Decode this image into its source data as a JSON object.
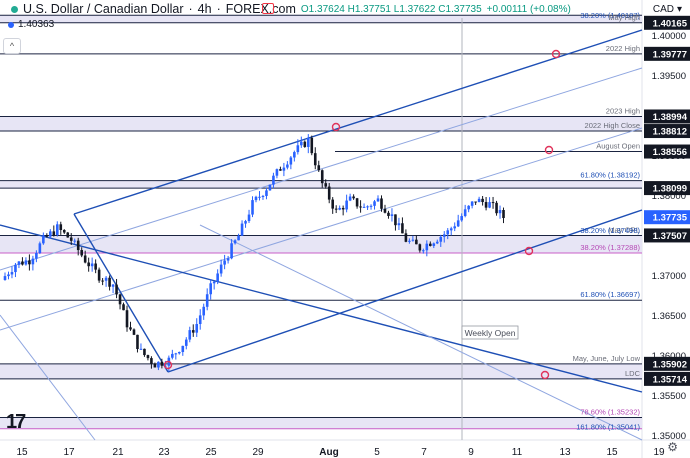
{
  "header": {
    "title": "U.S. Dollar / Canadian Dollar",
    "timeframe": "4h",
    "exchange": "FOREX.com",
    "open": "O1.37624",
    "high": "H1.37751",
    "low": "L1.37622",
    "close": "C1.37735",
    "change": "+0.00111 (+0.08%)",
    "indicator_value": "1.40363",
    "currency": "CAD",
    "collapse_glyph": "^"
  },
  "icons": {
    "status_dot": "green-status-dot-icon",
    "indicator_dot": "blue-dot-icon",
    "flag": "flag-icon",
    "currency_caret": "caret-down-icon",
    "settings": "gear-icon",
    "logo": "tradingview-logo-icon"
  },
  "colors": {
    "channel": "#1e4fb5",
    "channel_light": "#8fa6e0",
    "up_candle": "#2962ff",
    "down_candle": "#131722",
    "zone_fill": "#e4e2f4",
    "magenta_line": "#c85fc8",
    "price_tag": "#2962ff",
    "marker": "#e0335b"
  },
  "chart_data": {
    "type": "candlestick",
    "instrument": "USD/CAD",
    "timeframe": "4h",
    "ylim": [
      1.3495,
      1.4045
    ],
    "y_ticks": [
      "1.40000",
      "1.39500",
      "1.39000",
      "1.38500",
      "1.38000",
      "1.37500",
      "1.37000",
      "1.36500",
      "1.36000",
      "1.35500",
      "1.35000"
    ],
    "x_ticks": [
      "15",
      "17",
      "21",
      "23",
      "25",
      "29",
      "Aug",
      "5",
      "7",
      "9",
      "11",
      "13",
      "15",
      "19"
    ],
    "last_price": "1.37735",
    "close_path": [
      1.3695,
      1.3715,
      1.372,
      1.3745,
      1.376,
      1.3745,
      1.372,
      1.37,
      1.369,
      1.364,
      1.3605,
      1.359,
      1.3595,
      1.3615,
      1.364,
      1.3685,
      1.372,
      1.375,
      1.379,
      1.381,
      1.3835,
      1.3855,
      1.387,
      1.3815,
      1.378,
      1.3795,
      1.3785,
      1.3795,
      1.3775,
      1.3745,
      1.3735,
      1.3745,
      1.3755,
      1.3775,
      1.3795,
      1.379,
      1.37735
    ],
    "levels": [
      {
        "label": "38.20% (1.40187)",
        "value": 1.40187,
        "style": "fib"
      },
      {
        "label": "May High",
        "value": 1.40165,
        "style": "zone",
        "low": 1.40165,
        "high": 1.4026,
        "tag": "1.40165"
      },
      {
        "label": "2022 High",
        "value": 1.39777,
        "style": "line",
        "tag": "1.39777"
      },
      {
        "label": "2023 High",
        "value": 1.38994,
        "style": "zone",
        "low": 1.38812,
        "high": 1.38994,
        "tag": "1.38994"
      },
      {
        "label": "2022 High Close",
        "value": 1.38812,
        "style": "line",
        "tag": "1.38812"
      },
      {
        "label": "August Open",
        "value": 1.38556,
        "style": "line",
        "tag": "1.38556"
      },
      {
        "label": "61.80% (1.38192)",
        "value": 1.38192,
        "style": "zone",
        "low": 1.38099,
        "high": 1.38192
      },
      {
        "label": "",
        "value": 1.38099,
        "style": "tag",
        "tag": "1.38099"
      },
      {
        "label": "May ORL",
        "value": 1.37507,
        "style": "zone",
        "low": 1.37288,
        "high": 1.37507,
        "tag": "1.37507"
      },
      {
        "label": "38.20% (1.37498)",
        "value": 1.37498,
        "style": "fib"
      },
      {
        "label": "38.20% (1.37288)",
        "value": 1.37288,
        "style": "magenta"
      },
      {
        "label": "61.80% (1.36697)",
        "value": 1.36697,
        "style": "line"
      },
      {
        "label": "May, June, July Low",
        "value": 1.35902,
        "style": "zone",
        "low": 1.35714,
        "high": 1.35902,
        "tag": "1.35902"
      },
      {
        "label": "LDC",
        "value": 1.35714,
        "style": "tag",
        "tag": "1.35714"
      },
      {
        "label": "78.60% (1.35232)",
        "value": 1.35232,
        "style": "magenta-zone",
        "low": 1.3509,
        "high": 1.35232
      },
      {
        "label": "161.80% (1.35041)",
        "value": 1.35041,
        "style": "fib"
      }
    ],
    "annotations": [
      "Weekly Open"
    ]
  }
}
